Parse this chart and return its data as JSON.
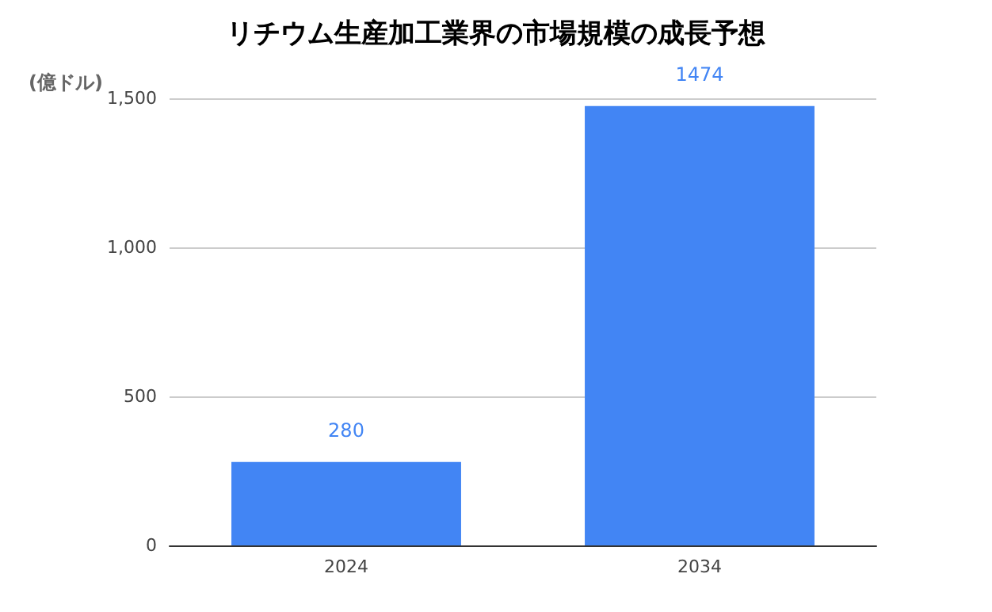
{
  "chart_data": {
    "type": "bar",
    "title": "リチウム生産加工業界の市場規模の成長予想",
    "ylabel": "(億ドル)",
    "categories": [
      "2024",
      "2034"
    ],
    "values": [
      280,
      1474
    ],
    "color": "#4285f4",
    "ylim": [
      0,
      1500
    ],
    "yticks": [
      0,
      500,
      {
        "value": 1000,
        "label": "1,000"
      },
      {
        "value": 1500,
        "label": "1,500"
      }
    ],
    "grid": "y",
    "data_labels": true
  }
}
